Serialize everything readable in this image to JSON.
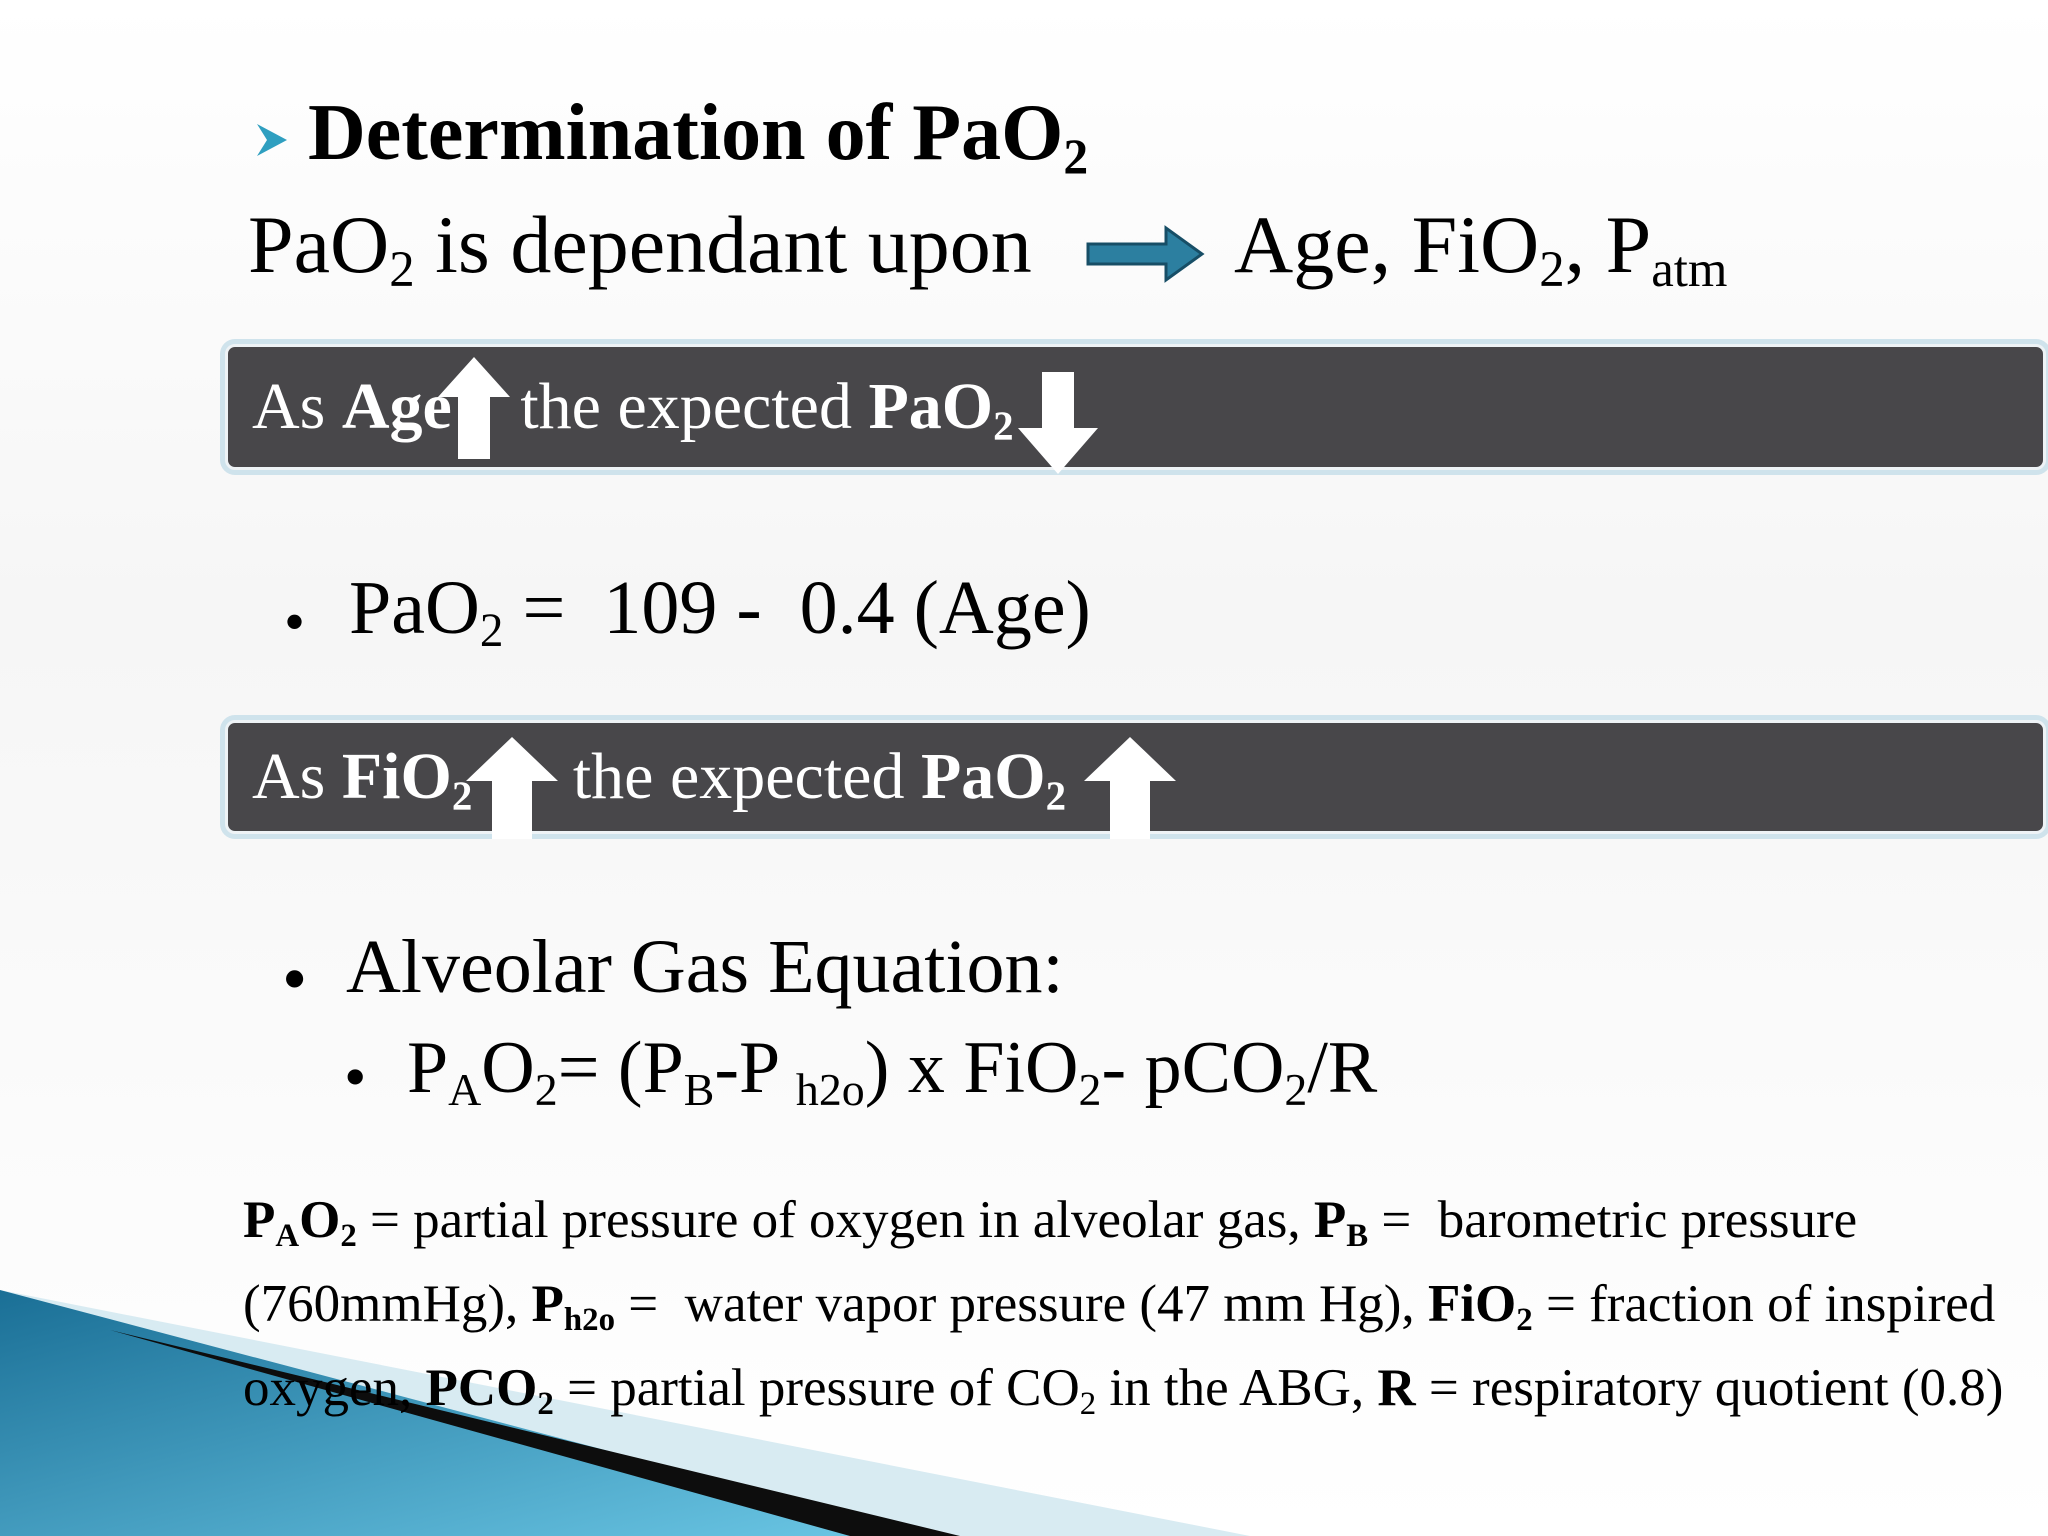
{
  "title": [
    "Determination of PaO",
    "2"
  ],
  "dependency": {
    "lead": [
      "PaO",
      "2",
      " is dependant upon"
    ],
    "factors": [
      "Age, FiO",
      "2",
      ", P",
      "atm"
    ]
  },
  "banners": [
    [
      "As ",
      "Age",
      " the expected ",
      "PaO",
      "2"
    ],
    [
      "As ",
      "FiO",
      "2",
      " the expected ",
      "PaO",
      "2"
    ]
  ],
  "bullets": [
    [
      "PaO",
      "2",
      " =  109 -  0.4 (Age)"
    ],
    [
      "Alveolar Gas Equation:"
    ]
  ],
  "sub_bullet": [
    "P",
    "A",
    "O",
    "2",
    "= (P",
    "B",
    "-P ",
    "h2o",
    ") x FiO",
    "2",
    "- pCO",
    "2",
    "/R"
  ],
  "footnote": [
    "P",
    "A",
    "O",
    "2",
    " = partial pressure of oxygen in alveolar gas, ",
    "P",
    "B",
    " =  barometric pressure (760mmHg), ",
    "P",
    "h2o",
    " =  water vapor pressure (47 mm Hg), ",
    "FiO",
    "2",
    " = fraction of inspired oxygen, ",
    "PCO",
    "2",
    " = partial pressure of CO",
    "2",
    " in the ABG, ",
    "R",
    " = respiratory quotient (0.8)"
  ]
}
